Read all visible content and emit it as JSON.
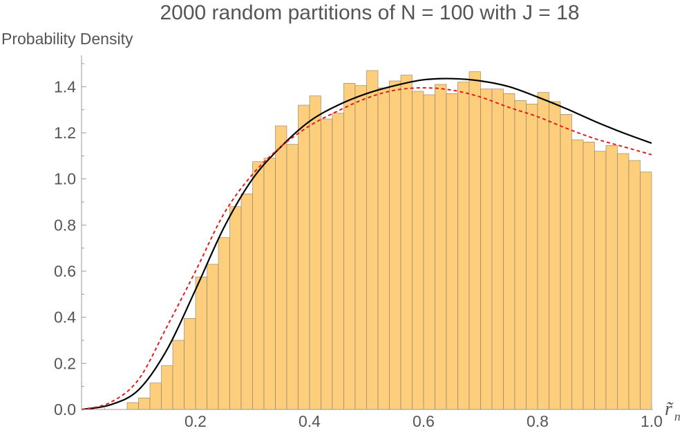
{
  "chart_data": {
    "type": "bar",
    "title": "2000 random partitions of N = 100 with J = 18",
    "ylabel": "Probability Density",
    "xlabel": {
      "base": "r̃",
      "subscript": "n"
    },
    "xlim": [
      0.0,
      1.0
    ],
    "ylim": [
      0.0,
      1.5
    ],
    "xticks": [
      0.2,
      0.4,
      0.6,
      0.8,
      1.0
    ],
    "xtick_labels": [
      "0.2",
      "0.4",
      "0.6",
      "0.8",
      "1.0"
    ],
    "yticks": [
      0.0,
      0.2,
      0.4,
      0.6,
      0.8,
      1.0,
      1.2,
      1.4
    ],
    "ytick_labels": [
      "0.0",
      "0.2",
      "0.4",
      "0.6",
      "0.8",
      "1.0",
      "1.2",
      "1.4"
    ],
    "grid": false,
    "bin_width": 0.02,
    "bins": {
      "x_start": [
        0.08,
        0.1,
        0.12,
        0.14,
        0.16,
        0.18,
        0.2,
        0.22,
        0.24,
        0.26,
        0.28,
        0.3,
        0.32,
        0.34,
        0.36,
        0.38,
        0.4,
        0.42,
        0.44,
        0.46,
        0.48,
        0.5,
        0.52,
        0.54,
        0.56,
        0.58,
        0.6,
        0.62,
        0.64,
        0.66,
        0.68,
        0.7,
        0.72,
        0.74,
        0.76,
        0.78,
        0.8,
        0.82,
        0.84,
        0.86,
        0.88,
        0.9,
        0.92,
        0.94,
        0.96,
        0.98
      ],
      "values": [
        0.03,
        0.05,
        0.115,
        0.19,
        0.3,
        0.395,
        0.575,
        0.63,
        0.745,
        0.88,
        0.935,
        1.075,
        1.09,
        1.23,
        1.15,
        1.32,
        1.36,
        1.26,
        1.285,
        1.415,
        1.405,
        1.47,
        1.395,
        1.425,
        1.45,
        1.38,
        1.365,
        1.41,
        1.37,
        1.42,
        1.465,
        1.39,
        1.39,
        1.37,
        1.34,
        1.325,
        1.375,
        1.335,
        1.28,
        1.17,
        1.16,
        1.12,
        1.145,
        1.11,
        1.08,
        1.03
      ]
    },
    "series": [
      {
        "style": "solid",
        "color": "#000000",
        "x": [
          0.0,
          0.05,
          0.1,
          0.15,
          0.2,
          0.25,
          0.3,
          0.35,
          0.4,
          0.45,
          0.5,
          0.55,
          0.6,
          0.65,
          0.7,
          0.75,
          0.8,
          0.85,
          0.9,
          0.95,
          1.0
        ],
        "y": [
          0.0,
          0.02,
          0.085,
          0.26,
          0.52,
          0.79,
          1.0,
          1.14,
          1.25,
          1.32,
          1.37,
          1.405,
          1.43,
          1.435,
          1.425,
          1.4,
          1.355,
          1.305,
          1.25,
          1.2,
          1.155
        ]
      },
      {
        "style": "dashed",
        "color": "#e41a1c",
        "x": [
          0.0,
          0.05,
          0.1,
          0.15,
          0.2,
          0.25,
          0.3,
          0.35,
          0.4,
          0.45,
          0.5,
          0.55,
          0.6,
          0.65,
          0.7,
          0.75,
          0.8,
          0.85,
          0.9,
          0.95,
          1.0
        ],
        "y": [
          0.0,
          0.03,
          0.13,
          0.36,
          0.6,
          0.85,
          1.02,
          1.14,
          1.23,
          1.295,
          1.35,
          1.385,
          1.395,
          1.385,
          1.355,
          1.31,
          1.27,
          1.22,
          1.175,
          1.14,
          1.105
        ]
      }
    ]
  }
}
